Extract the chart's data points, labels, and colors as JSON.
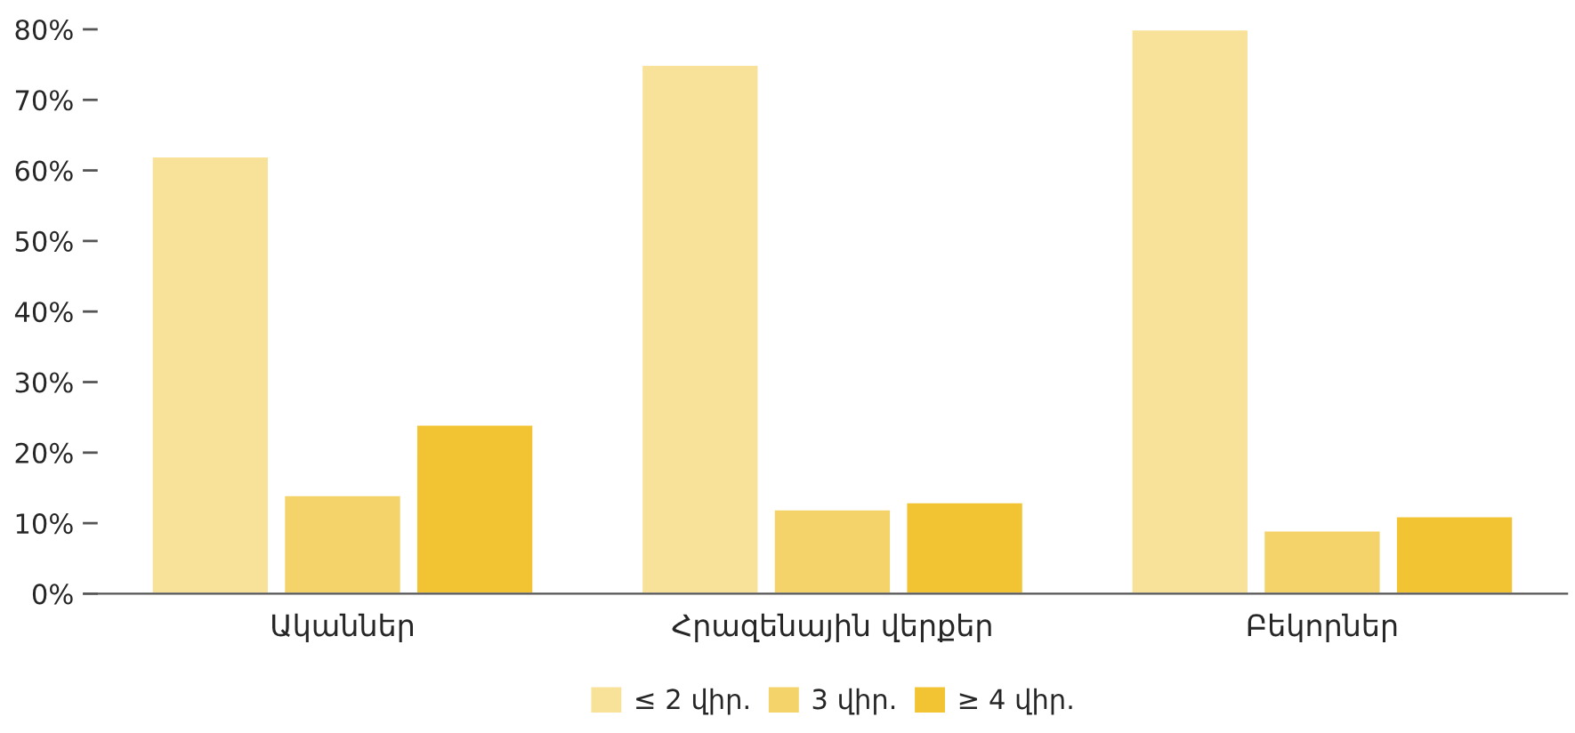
{
  "chart_data": {
    "type": "bar",
    "categories": [
      "Ականներ",
      "Հրազենային վերքեր",
      "Բեկորներ"
    ],
    "series": [
      {
        "name": "≤ 2 վիր.",
        "color": "#f8e29a",
        "values": [
          62,
          75,
          80
        ]
      },
      {
        "name": "3 վիր.",
        "color": "#f5d36b",
        "values": [
          14,
          12,
          9
        ]
      },
      {
        "name": "≥ 4 վիր.",
        "color": "#f2c434",
        "values": [
          24,
          13,
          11
        ]
      }
    ],
    "ylim": [
      0,
      80
    ],
    "yticks": [
      {
        "value": 0,
        "label": "0%"
      },
      {
        "value": 10,
        "label": "10%"
      },
      {
        "value": 20,
        "label": "20%"
      },
      {
        "value": 30,
        "label": "30%"
      },
      {
        "value": 40,
        "label": "40%"
      },
      {
        "value": 50,
        "label": "50%"
      },
      {
        "value": 60,
        "label": "60%"
      },
      {
        "value": 70,
        "label": "70%"
      },
      {
        "value": 80,
        "label": "80%"
      }
    ],
    "grid": false,
    "legend": "bottom"
  }
}
